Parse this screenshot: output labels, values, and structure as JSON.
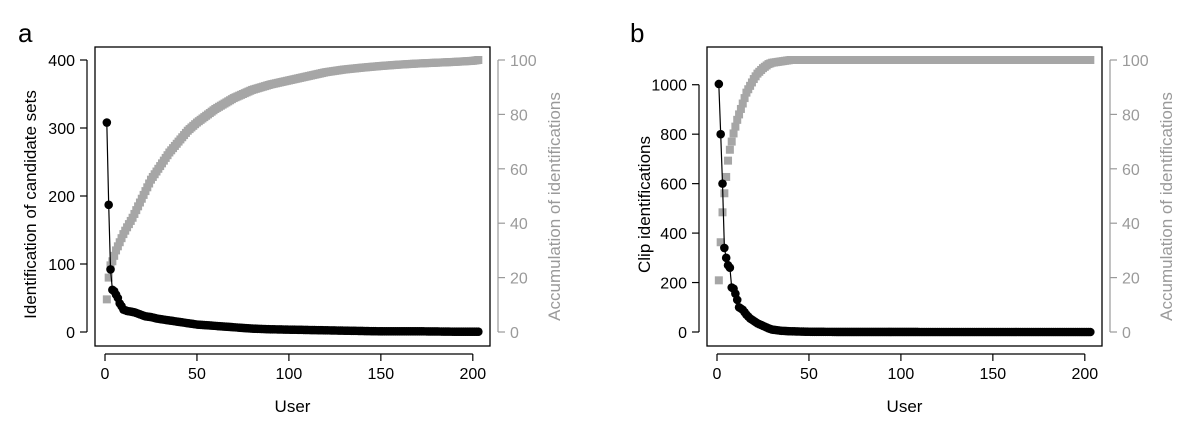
{
  "chart_data": [
    {
      "panel_label": "a",
      "type": "scatter",
      "xlabel": "User",
      "ylabel": "Identification of candidate sets",
      "ylabel_right": "Accumulation of identifications",
      "xlim": [
        0,
        205
      ],
      "ylim": [
        0,
        400
      ],
      "ylim_right": [
        0,
        100
      ],
      "xticks": [
        0,
        50,
        100,
        150,
        200
      ],
      "yticks": [
        0,
        100,
        200,
        300,
        400
      ],
      "yticks_right": [
        0,
        20,
        40,
        60,
        80,
        100
      ],
      "colors": {
        "per_user": "#000000",
        "accumulation": "#a6a6a6",
        "axis": "#000000",
        "right_axis": "#9a9a9a"
      },
      "series": [
        {
          "name": "Identification of candidate sets",
          "axis": "left",
          "marker": "circle",
          "x": [
            1,
            2,
            3,
            4,
            5,
            6,
            7,
            8,
            9,
            10,
            12,
            14,
            16,
            18,
            20,
            22,
            25,
            28,
            30,
            35,
            40,
            45,
            50,
            55,
            60,
            65,
            70,
            80,
            90,
            100,
            110,
            120,
            130,
            140,
            150,
            160,
            170,
            180,
            190,
            200,
            203
          ],
          "values": [
            308,
            187,
            92,
            62,
            60,
            55,
            50,
            42,
            38,
            33,
            31,
            30,
            29,
            27,
            25,
            23,
            22,
            20,
            19,
            17,
            15,
            13,
            11,
            10,
            9,
            8,
            7,
            5,
            4,
            3.5,
            3,
            2.5,
            2,
            1.5,
            1,
            1,
            1,
            0.8,
            0.5,
            0.5,
            0.4
          ]
        },
        {
          "name": "Accumulation of identifications",
          "axis": "right",
          "marker": "square",
          "x": [
            1,
            2,
            3,
            4,
            5,
            6,
            8,
            10,
            12,
            15,
            20,
            25,
            30,
            35,
            40,
            45,
            50,
            60,
            70,
            80,
            90,
            100,
            110,
            120,
            130,
            140,
            150,
            160,
            170,
            180,
            190,
            200,
            203
          ],
          "values": [
            12,
            20,
            24.5,
            26,
            28,
            30,
            33,
            36,
            38.5,
            42,
            49,
            56,
            61,
            66,
            70,
            74,
            77,
            82,
            86,
            89,
            91,
            92.5,
            94,
            95.5,
            96.5,
            97.2,
            97.8,
            98.3,
            98.7,
            99,
            99.3,
            99.7,
            100
          ]
        }
      ]
    },
    {
      "panel_label": "b",
      "type": "scatter",
      "xlabel": "User",
      "ylabel": "Clip identifications",
      "ylabel_right": "Accumulation of identifications",
      "xlim": [
        0,
        205
      ],
      "ylim": [
        0,
        1100
      ],
      "ylim_right": [
        0,
        100
      ],
      "xticks": [
        0,
        50,
        100,
        150,
        200
      ],
      "yticks": [
        0,
        200,
        400,
        600,
        800,
        1000
      ],
      "yticks_right": [
        0,
        20,
        40,
        60,
        80,
        100
      ],
      "colors": {
        "per_user": "#000000",
        "accumulation": "#a6a6a6",
        "axis": "#000000",
        "right_axis": "#9a9a9a"
      },
      "series": [
        {
          "name": "Clip identifications",
          "axis": "left",
          "marker": "circle",
          "x": [
            1,
            2,
            3,
            4,
            5,
            6,
            7,
            8,
            9,
            10,
            11,
            12,
            14,
            16,
            18,
            20,
            22,
            25,
            28,
            30,
            35,
            40,
            45,
            50,
            60,
            70,
            80,
            90,
            100,
            120,
            140,
            160,
            180,
            200,
            203
          ],
          "values": [
            1003,
            800,
            600,
            340,
            300,
            270,
            260,
            180,
            175,
            155,
            130,
            100,
            90,
            70,
            55,
            45,
            35,
            25,
            15,
            10,
            5,
            3,
            2,
            1,
            0.5,
            0.3,
            0.2,
            0.1,
            0.1,
            0,
            0,
            0,
            0,
            0,
            0
          ]
        },
        {
          "name": "Accumulation of identifications",
          "axis": "right",
          "marker": "square",
          "x": [
            1,
            2,
            3,
            4,
            5,
            6,
            7,
            8,
            9,
            10,
            11,
            12,
            13,
            14,
            15,
            16,
            18,
            20,
            22,
            25,
            28,
            30,
            35,
            40,
            45,
            50,
            60,
            80,
            100,
            120,
            140,
            160,
            180,
            200,
            203
          ],
          "values": [
            19,
            33,
            44,
            51,
            57,
            63,
            67,
            70,
            73,
            75.5,
            78,
            80,
            82,
            84,
            86,
            88,
            90.5,
            93,
            95,
            97,
            98.5,
            99,
            99.5,
            100,
            100,
            100,
            100,
            100,
            100,
            100,
            100,
            100,
            100,
            100,
            100
          ]
        }
      ]
    }
  ]
}
